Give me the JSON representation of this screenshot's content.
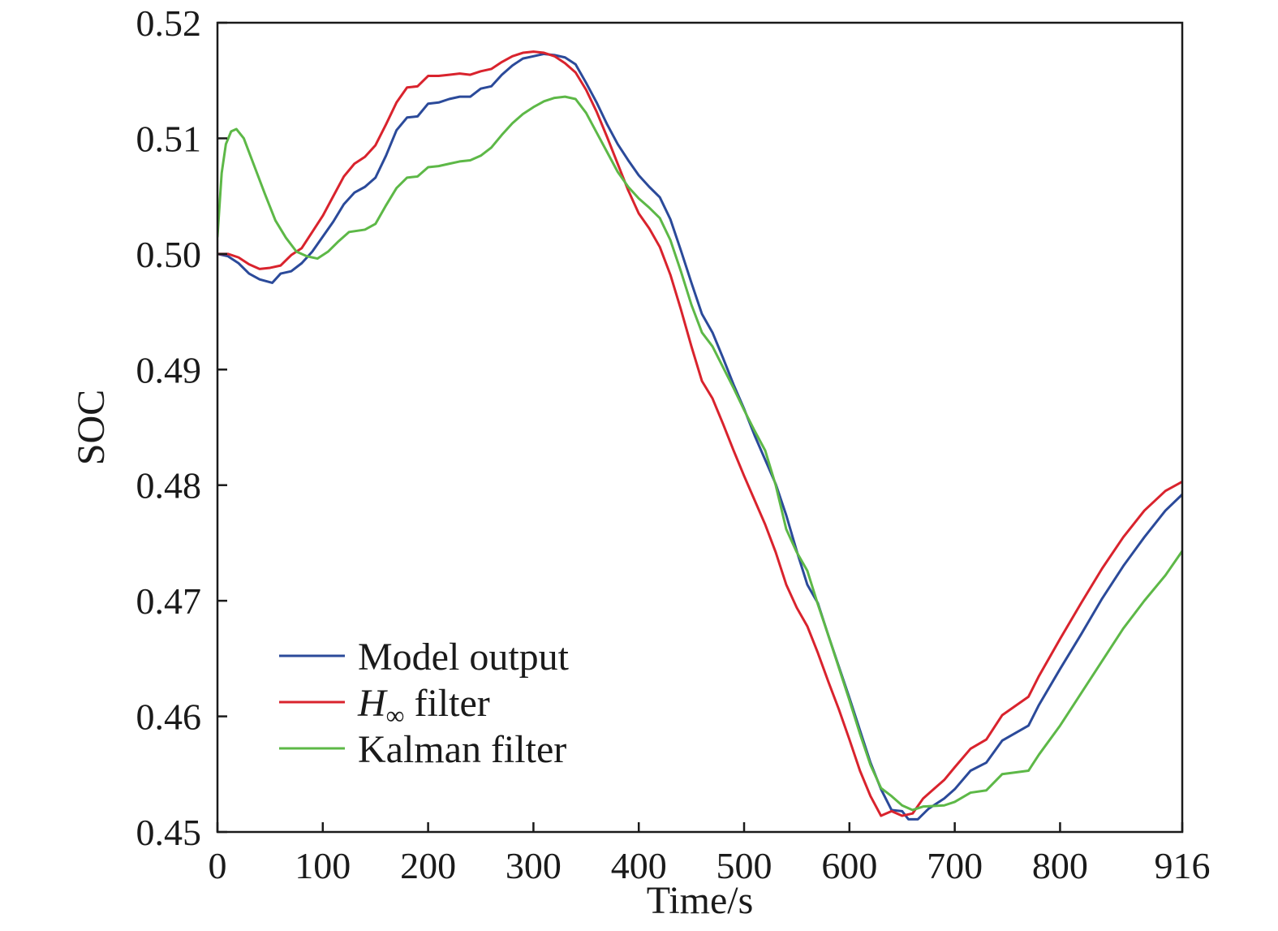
{
  "chart_data": {
    "type": "line",
    "title": "",
    "xlabel": "Time/s",
    "ylabel": "SOC",
    "xlim": [
      0,
      916
    ],
    "ylim": [
      0.45,
      0.52
    ],
    "x_ticks": [
      "0",
      "100",
      "200",
      "300",
      "400",
      "500",
      "600",
      "700",
      "800",
      "916"
    ],
    "y_ticks": [
      "0.45",
      "0.46",
      "0.47",
      "0.48",
      "0.49",
      "0.50",
      "0.51",
      "0.52"
    ],
    "grid": false,
    "legend_position": "bottom-left",
    "series": [
      {
        "name": "Model output",
        "legend_main": "Model output",
        "legend_sub": "",
        "legend_rest": "",
        "color": "#2b4a9a",
        "points": [
          [
            0,
            0.5
          ],
          [
            10,
            0.4998
          ],
          [
            20,
            0.4992
          ],
          [
            30,
            0.4983
          ],
          [
            40,
            0.4978
          ],
          [
            52,
            0.4975
          ],
          [
            60,
            0.4983
          ],
          [
            70,
            0.4985
          ],
          [
            80,
            0.4992
          ],
          [
            90,
            0.5002
          ],
          [
            100,
            0.5015
          ],
          [
            110,
            0.5028
          ],
          [
            120,
            0.5043
          ],
          [
            130,
            0.5053
          ],
          [
            140,
            0.5058
          ],
          [
            150,
            0.5066
          ],
          [
            160,
            0.5085
          ],
          [
            170,
            0.5107
          ],
          [
            180,
            0.5118
          ],
          [
            190,
            0.5119
          ],
          [
            200,
            0.513
          ],
          [
            210,
            0.5131
          ],
          [
            220,
            0.5134
          ],
          [
            230,
            0.5136
          ],
          [
            240,
            0.5136
          ],
          [
            250,
            0.5143
          ],
          [
            260,
            0.5145
          ],
          [
            270,
            0.5155
          ],
          [
            280,
            0.5163
          ],
          [
            290,
            0.5169
          ],
          [
            300,
            0.5171
          ],
          [
            310,
            0.5173
          ],
          [
            320,
            0.5172
          ],
          [
            330,
            0.517
          ],
          [
            340,
            0.5164
          ],
          [
            350,
            0.5148
          ],
          [
            360,
            0.5131
          ],
          [
            370,
            0.5112
          ],
          [
            380,
            0.5095
          ],
          [
            390,
            0.5081
          ],
          [
            400,
            0.5068
          ],
          [
            410,
            0.5058
          ],
          [
            420,
            0.5049
          ],
          [
            430,
            0.503
          ],
          [
            440,
            0.5003
          ],
          [
            450,
            0.4975
          ],
          [
            460,
            0.4948
          ],
          [
            470,
            0.4932
          ],
          [
            480,
            0.491
          ],
          [
            490,
            0.4887
          ],
          [
            500,
            0.4866
          ],
          [
            510,
            0.4843
          ],
          [
            520,
            0.4822
          ],
          [
            530,
            0.4801
          ],
          [
            540,
            0.4774
          ],
          [
            550,
            0.4743
          ],
          [
            560,
            0.4714
          ],
          [
            570,
            0.4698
          ],
          [
            580,
            0.467
          ],
          [
            590,
            0.4643
          ],
          [
            600,
            0.4616
          ],
          [
            610,
            0.4588
          ],
          [
            620,
            0.456
          ],
          [
            630,
            0.4537
          ],
          [
            640,
            0.4519
          ],
          [
            650,
            0.4518
          ],
          [
            656,
            0.4511
          ],
          [
            665,
            0.4511
          ],
          [
            675,
            0.452
          ],
          [
            690,
            0.4529
          ],
          [
            700,
            0.4537
          ],
          [
            715,
            0.4553
          ],
          [
            730,
            0.456
          ],
          [
            745,
            0.4579
          ],
          [
            770,
            0.4592
          ],
          [
            780,
            0.461
          ],
          [
            800,
            0.4641
          ],
          [
            820,
            0.4671
          ],
          [
            840,
            0.4702
          ],
          [
            860,
            0.473
          ],
          [
            880,
            0.4755
          ],
          [
            900,
            0.4778
          ],
          [
            916,
            0.4792
          ]
        ]
      },
      {
        "name": "H∞ filter",
        "legend_main": "H",
        "legend_sub": "∞",
        "legend_rest": " filter",
        "color": "#d9232d",
        "points": [
          [
            0,
            0.5
          ],
          [
            10,
            0.5
          ],
          [
            20,
            0.4997
          ],
          [
            30,
            0.4991
          ],
          [
            40,
            0.4987
          ],
          [
            50,
            0.4988
          ],
          [
            60,
            0.499
          ],
          [
            70,
            0.4999
          ],
          [
            80,
            0.5005
          ],
          [
            90,
            0.5019
          ],
          [
            100,
            0.5033
          ],
          [
            110,
            0.505
          ],
          [
            120,
            0.5067
          ],
          [
            130,
            0.5078
          ],
          [
            140,
            0.5084
          ],
          [
            150,
            0.5094
          ],
          [
            160,
            0.5112
          ],
          [
            170,
            0.5131
          ],
          [
            180,
            0.5144
          ],
          [
            190,
            0.5145
          ],
          [
            200,
            0.5154
          ],
          [
            210,
            0.5154
          ],
          [
            220,
            0.5155
          ],
          [
            230,
            0.5156
          ],
          [
            240,
            0.5155
          ],
          [
            250,
            0.5158
          ],
          [
            260,
            0.516
          ],
          [
            270,
            0.5166
          ],
          [
            280,
            0.5171
          ],
          [
            290,
            0.5174
          ],
          [
            300,
            0.5175
          ],
          [
            310,
            0.5174
          ],
          [
            320,
            0.5171
          ],
          [
            330,
            0.5165
          ],
          [
            340,
            0.5157
          ],
          [
            350,
            0.5142
          ],
          [
            360,
            0.5123
          ],
          [
            370,
            0.5101
          ],
          [
            380,
            0.5078
          ],
          [
            390,
            0.5055
          ],
          [
            400,
            0.5035
          ],
          [
            410,
            0.5022
          ],
          [
            420,
            0.5006
          ],
          [
            430,
            0.4982
          ],
          [
            440,
            0.4952
          ],
          [
            450,
            0.492
          ],
          [
            460,
            0.489
          ],
          [
            470,
            0.4875
          ],
          [
            480,
            0.4853
          ],
          [
            490,
            0.483
          ],
          [
            500,
            0.4808
          ],
          [
            510,
            0.4787
          ],
          [
            520,
            0.4766
          ],
          [
            530,
            0.4742
          ],
          [
            540,
            0.4714
          ],
          [
            550,
            0.4694
          ],
          [
            560,
            0.4678
          ],
          [
            570,
            0.4655
          ],
          [
            580,
            0.463
          ],
          [
            590,
            0.4606
          ],
          [
            600,
            0.458
          ],
          [
            610,
            0.4553
          ],
          [
            620,
            0.4531
          ],
          [
            630,
            0.4514
          ],
          [
            640,
            0.4518
          ],
          [
            650,
            0.4514
          ],
          [
            660,
            0.4516
          ],
          [
            670,
            0.4529
          ],
          [
            680,
            0.4537
          ],
          [
            690,
            0.4545
          ],
          [
            700,
            0.4556
          ],
          [
            715,
            0.4572
          ],
          [
            730,
            0.458
          ],
          [
            745,
            0.4601
          ],
          [
            770,
            0.4617
          ],
          [
            780,
            0.4635
          ],
          [
            800,
            0.4667
          ],
          [
            820,
            0.4698
          ],
          [
            840,
            0.4728
          ],
          [
            860,
            0.4755
          ],
          [
            880,
            0.4778
          ],
          [
            900,
            0.4795
          ],
          [
            916,
            0.4803
          ]
        ]
      },
      {
        "name": "Kalman filter",
        "legend_main": "Kalman filter",
        "legend_sub": "",
        "legend_rest": "",
        "color": "#5db847",
        "points": [
          [
            0,
            0.5015
          ],
          [
            4,
            0.507
          ],
          [
            8,
            0.5095
          ],
          [
            13,
            0.5106
          ],
          [
            18,
            0.5108
          ],
          [
            25,
            0.51
          ],
          [
            35,
            0.5076
          ],
          [
            45,
            0.5052
          ],
          [
            55,
            0.5029
          ],
          [
            65,
            0.5014
          ],
          [
            75,
            0.5002
          ],
          [
            85,
            0.4998
          ],
          [
            95,
            0.4996
          ],
          [
            105,
            0.5002
          ],
          [
            115,
            0.5011
          ],
          [
            125,
            0.5019
          ],
          [
            140,
            0.5021
          ],
          [
            150,
            0.5026
          ],
          [
            160,
            0.5042
          ],
          [
            170,
            0.5057
          ],
          [
            180,
            0.5066
          ],
          [
            190,
            0.5067
          ],
          [
            200,
            0.5075
          ],
          [
            210,
            0.5076
          ],
          [
            220,
            0.5078
          ],
          [
            230,
            0.508
          ],
          [
            240,
            0.5081
          ],
          [
            250,
            0.5085
          ],
          [
            260,
            0.5092
          ],
          [
            270,
            0.5103
          ],
          [
            280,
            0.5113
          ],
          [
            290,
            0.5121
          ],
          [
            300,
            0.5127
          ],
          [
            310,
            0.5132
          ],
          [
            320,
            0.5135
          ],
          [
            330,
            0.5136
          ],
          [
            340,
            0.5134
          ],
          [
            350,
            0.5122
          ],
          [
            360,
            0.5105
          ],
          [
            370,
            0.5088
          ],
          [
            380,
            0.5071
          ],
          [
            390,
            0.5058
          ],
          [
            400,
            0.5048
          ],
          [
            410,
            0.504
          ],
          [
            420,
            0.5031
          ],
          [
            430,
            0.5012
          ],
          [
            440,
            0.4985
          ],
          [
            450,
            0.4956
          ],
          [
            460,
            0.4932
          ],
          [
            470,
            0.492
          ],
          [
            480,
            0.4902
          ],
          [
            490,
            0.4884
          ],
          [
            500,
            0.4865
          ],
          [
            510,
            0.4847
          ],
          [
            520,
            0.483
          ],
          [
            530,
            0.48
          ],
          [
            540,
            0.4762
          ],
          [
            550,
            0.4742
          ],
          [
            560,
            0.4726
          ],
          [
            570,
            0.4697
          ],
          [
            580,
            0.467
          ],
          [
            590,
            0.4642
          ],
          [
            600,
            0.4614
          ],
          [
            610,
            0.4585
          ],
          [
            620,
            0.4558
          ],
          [
            630,
            0.4538
          ],
          [
            640,
            0.4531
          ],
          [
            650,
            0.4523
          ],
          [
            660,
            0.4519
          ],
          [
            670,
            0.4522
          ],
          [
            690,
            0.4523
          ],
          [
            700,
            0.4526
          ],
          [
            715,
            0.4534
          ],
          [
            730,
            0.4536
          ],
          [
            745,
            0.455
          ],
          [
            770,
            0.4553
          ],
          [
            780,
            0.4567
          ],
          [
            800,
            0.4592
          ],
          [
            820,
            0.462
          ],
          [
            840,
            0.4648
          ],
          [
            860,
            0.4676
          ],
          [
            880,
            0.47
          ],
          [
            900,
            0.4722
          ],
          [
            916,
            0.4743
          ]
        ]
      }
    ]
  }
}
